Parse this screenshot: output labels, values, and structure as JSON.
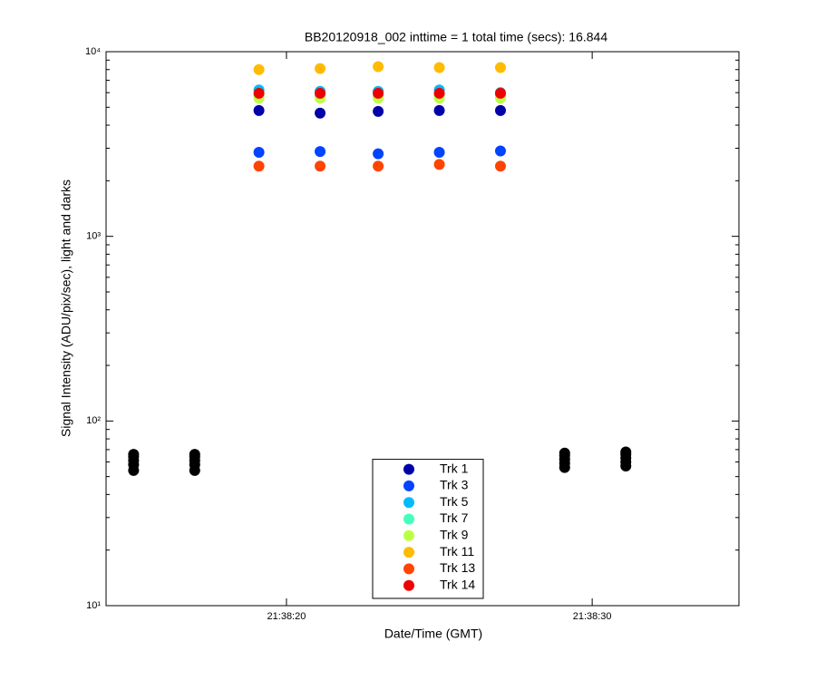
{
  "chart_data": {
    "type": "scatter",
    "title": "BB20120918_002 inttime = 1 total time (secs): 16.844",
    "xlabel": "Date/Time (GMT)",
    "ylabel": "Signal Intensity (ADU/pix/sec), light and darks",
    "xlim": [
      "21:38:14.1",
      "21:38:34.8"
    ],
    "xticks": [
      "21:38:20",
      "21:38:30"
    ],
    "ylim": [
      10,
      10000
    ],
    "yticks": [
      {
        "value": 10,
        "label": "10¹"
      },
      {
        "value": 100,
        "label": "10²"
      },
      {
        "value": 1000,
        "label": "10³"
      },
      {
        "value": 10000,
        "label": "10⁴"
      }
    ],
    "yscale": "log",
    "legend": "lower center",
    "x": [
      "21:38:19.1",
      "21:38:21.1",
      "21:38:23.0",
      "21:38:25.0",
      "21:38:27.0"
    ],
    "series": [
      {
        "name": "Trk 1",
        "color": "#0000a8",
        "values": [
          4800,
          4650,
          4750,
          4800,
          4800
        ]
      },
      {
        "name": "Trk 3",
        "color": "#0044ff",
        "values": [
          2850,
          2880,
          2800,
          2850,
          2900
        ]
      },
      {
        "name": "Trk 5",
        "color": "#00bbff",
        "values": [
          6200,
          6100,
          6100,
          6200,
          6000
        ]
      },
      {
        "name": "Trk 7",
        "color": "#44ffbb",
        "values": [
          5800,
          5800,
          5800,
          5800,
          5800
        ]
      },
      {
        "name": "Trk 9",
        "color": "#bbff44",
        "values": [
          5600,
          5600,
          5600,
          5600,
          5600
        ]
      },
      {
        "name": "Trk 11",
        "color": "#ffbb00",
        "values": [
          8000,
          8100,
          8300,
          8200,
          8200
        ]
      },
      {
        "name": "Trk 13",
        "color": "#ff4400",
        "values": [
          2400,
          2400,
          2400,
          2450,
          2400
        ]
      },
      {
        "name": "Trk 14",
        "color": "#ee0000",
        "values": [
          5950,
          5950,
          5950,
          5950,
          5950
        ]
      }
    ],
    "darks": {
      "color": "#000000",
      "x": [
        "21:38:15.0",
        "21:38:15.0",
        "21:38:15.0",
        "21:38:15.0",
        "21:38:15.0",
        "21:38:17.0",
        "21:38:17.0",
        "21:38:17.0",
        "21:38:17.0",
        "21:38:17.0",
        "21:38:29.1",
        "21:38:29.1",
        "21:38:29.1",
        "21:38:29.1",
        "21:38:29.1",
        "21:38:31.1",
        "21:38:31.1",
        "21:38:31.1",
        "21:38:31.1",
        "21:38:31.1"
      ],
      "values": [
        54,
        58,
        61,
        64,
        66,
        54,
        58,
        61,
        64,
        66,
        56,
        59,
        62,
        65,
        67,
        57,
        60,
        63,
        66,
        68
      ]
    }
  }
}
